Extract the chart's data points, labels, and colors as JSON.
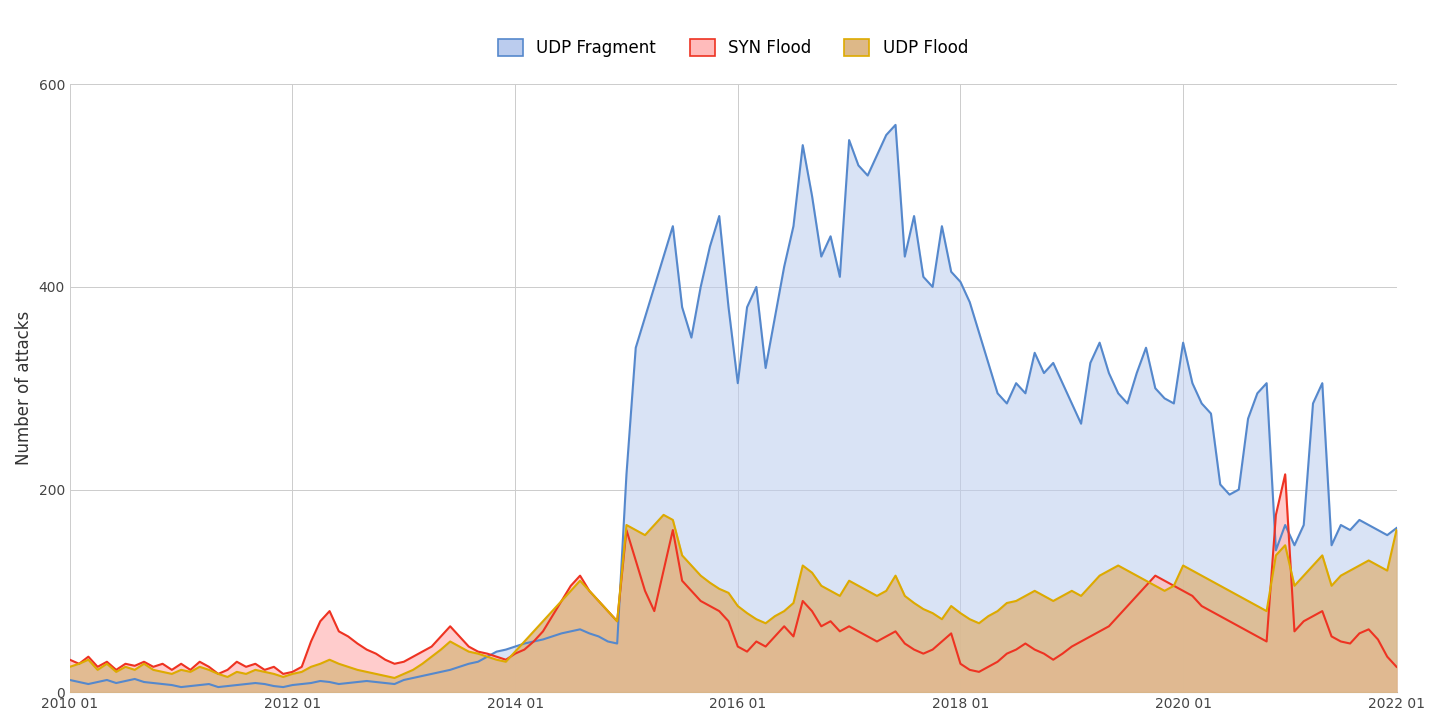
{
  "title": "",
  "ylabel": "Number of attacks",
  "xlabel": "",
  "legend": [
    "UDP Fragment",
    "SYN Flood",
    "UDP Flood"
  ],
  "udp_frag_line_color": "#5588cc",
  "syn_line_color": "#ee3322",
  "udp_flood_line_color": "#ddaa00",
  "udp_frag_fill_color": "#bbccee",
  "syn_fill_color": "#ffbbbb",
  "udp_flood_fill_color": "#ddb888",
  "background_color": "#ffffff",
  "grid_color": "#cccccc",
  "ylim": [
    0,
    600
  ],
  "yticks": [
    0,
    200,
    400,
    600
  ],
  "xtick_labels": [
    "2010 01",
    "2012 01",
    "2014 01",
    "2016 01",
    "2018 01",
    "2020 01",
    "2022 01"
  ],
  "udp_fragment": [
    12,
    10,
    8,
    10,
    12,
    9,
    11,
    13,
    10,
    9,
    8,
    7,
    5,
    6,
    7,
    8,
    5,
    6,
    7,
    8,
    9,
    8,
    6,
    5,
    7,
    8,
    9,
    11,
    10,
    8,
    9,
    10,
    11,
    10,
    9,
    8,
    12,
    14,
    16,
    18,
    20,
    22,
    25,
    28,
    30,
    35,
    40,
    42,
    45,
    48,
    50,
    52,
    55,
    58,
    60,
    62,
    58,
    55,
    50,
    48,
    215,
    340,
    370,
    400,
    430,
    460,
    380,
    350,
    400,
    440,
    470,
    380,
    305,
    380,
    400,
    320,
    370,
    420,
    460,
    540,
    490,
    430,
    450,
    410,
    545,
    520,
    510,
    530,
    550,
    560,
    430,
    470,
    410,
    400,
    460,
    415,
    405,
    385,
    355,
    325,
    295,
    285,
    305,
    295,
    335,
    315,
    325,
    305,
    285,
    265,
    325,
    345,
    315,
    295,
    285,
    315,
    340,
    300,
    290,
    285,
    345,
    305,
    285,
    275,
    205,
    195,
    200,
    270,
    295,
    305,
    140,
    165,
    145,
    165,
    285,
    305,
    145,
    165,
    160,
    170,
    165,
    160,
    155,
    162
  ],
  "syn_flood": [
    32,
    28,
    35,
    25,
    30,
    22,
    28,
    26,
    30,
    25,
    28,
    22,
    28,
    22,
    30,
    25,
    18,
    22,
    30,
    25,
    28,
    22,
    25,
    18,
    20,
    25,
    50,
    70,
    80,
    60,
    55,
    48,
    42,
    38,
    32,
    28,
    30,
    35,
    40,
    45,
    55,
    65,
    55,
    45,
    40,
    38,
    35,
    32,
    38,
    42,
    50,
    60,
    75,
    90,
    105,
    115,
    100,
    90,
    80,
    70,
    160,
    130,
    100,
    80,
    120,
    160,
    110,
    100,
    90,
    85,
    80,
    70,
    45,
    40,
    50,
    45,
    55,
    65,
    55,
    90,
    80,
    65,
    70,
    60,
    65,
    60,
    55,
    50,
    55,
    60,
    48,
    42,
    38,
    42,
    50,
    58,
    28,
    22,
    20,
    25,
    30,
    38,
    42,
    48,
    42,
    38,
    32,
    38,
    45,
    50,
    55,
    60,
    65,
    75,
    85,
    95,
    105,
    115,
    110,
    105,
    100,
    95,
    85,
    80,
    75,
    70,
    65,
    60,
    55,
    50,
    175,
    215,
    60,
    70,
    75,
    80,
    55,
    50,
    48,
    58,
    62,
    52,
    35,
    25
  ],
  "udp_flood": [
    25,
    28,
    32,
    22,
    28,
    20,
    25,
    22,
    28,
    22,
    20,
    18,
    22,
    20,
    25,
    22,
    18,
    15,
    20,
    18,
    22,
    20,
    18,
    15,
    18,
    20,
    25,
    28,
    32,
    28,
    25,
    22,
    20,
    18,
    16,
    14,
    18,
    22,
    28,
    35,
    42,
    50,
    45,
    40,
    38,
    35,
    32,
    30,
    40,
    50,
    60,
    70,
    80,
    90,
    100,
    110,
    100,
    90,
    80,
    70,
    165,
    160,
    155,
    165,
    175,
    170,
    135,
    125,
    115,
    108,
    102,
    98,
    85,
    78,
    72,
    68,
    75,
    80,
    88,
    125,
    118,
    105,
    100,
    95,
    110,
    105,
    100,
    95,
    100,
    115,
    95,
    88,
    82,
    78,
    72,
    85,
    78,
    72,
    68,
    75,
    80,
    88,
    90,
    95,
    100,
    95,
    90,
    95,
    100,
    95,
    105,
    115,
    120,
    125,
    120,
    115,
    110,
    105,
    100,
    105,
    125,
    120,
    115,
    110,
    105,
    100,
    95,
    90,
    85,
    80,
    135,
    145,
    105,
    115,
    125,
    135,
    105,
    115,
    120,
    125,
    130,
    125,
    120,
    160
  ]
}
